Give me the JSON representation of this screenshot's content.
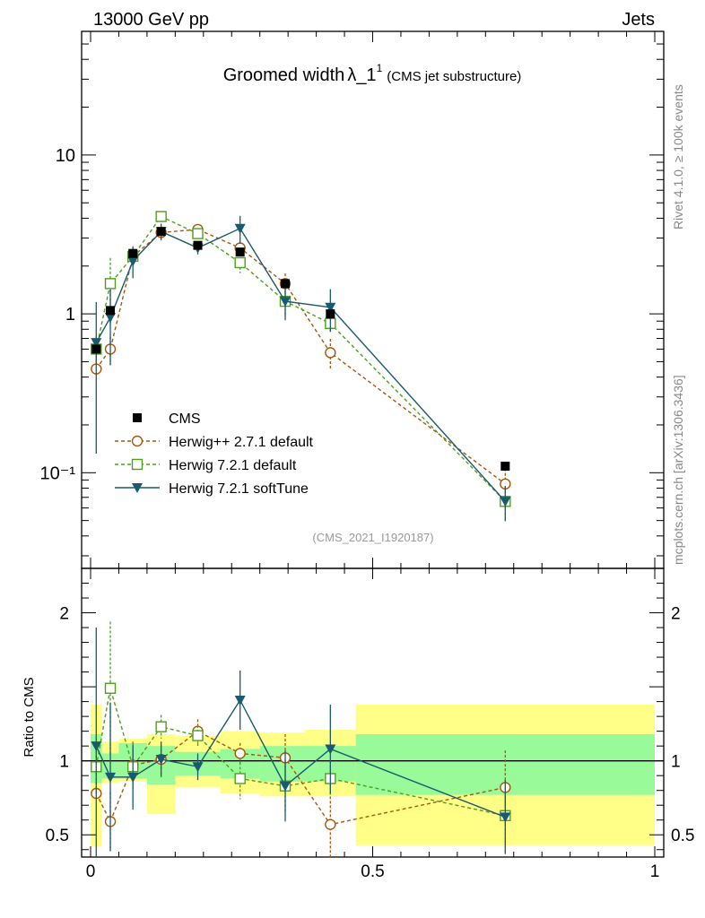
{
  "header": {
    "left": "13000 GeV pp",
    "right": "Jets"
  },
  "side": {
    "rivet": "Rivet 4.1.0, ≥ 100k events",
    "mcplots": "mcplots.cern.ch [arXiv:1306.3436]"
  },
  "chart_data": {
    "type": "scatter",
    "title_main": "Groomed width",
    "title_lambda": "λ_1",
    "title_sup": "1",
    "title_sub": "(CMS jet substructure)",
    "watermark": "(CMS_2021_I1920187)",
    "ylabel_ratio": "Ratio to CMS",
    "xlim": [
      0,
      1
    ],
    "ylim_main_log": [
      0.025,
      60
    ],
    "ylim_ratio": [
      0.35,
      2.3
    ],
    "x_ticks": [
      "0",
      "0.5",
      "1"
    ],
    "y_ticks_main": [
      "10⁻¹",
      "1",
      "10"
    ],
    "y_ticks_ratio": [
      "0.5",
      "1",
      "2"
    ],
    "bins": [
      [
        0.0,
        0.02
      ],
      [
        0.02,
        0.05
      ],
      [
        0.05,
        0.1
      ],
      [
        0.1,
        0.15
      ],
      [
        0.15,
        0.23
      ],
      [
        0.23,
        0.3
      ],
      [
        0.3,
        0.38
      ],
      [
        0.38,
        0.47
      ],
      [
        0.47,
        1.0
      ]
    ],
    "x": [
      0.01,
      0.035,
      0.075,
      0.125,
      0.19,
      0.265,
      0.345,
      0.425,
      0.735
    ],
    "data": {
      "name": "CMS",
      "values": [
        0.6,
        1.05,
        2.4,
        3.3,
        2.7,
        2.45,
        1.55,
        1.0,
        0.11
      ],
      "band_inner": [
        [
          0.85,
          1.18
        ],
        [
          0.88,
          1.05
        ],
        [
          0.88,
          1.12
        ],
        [
          0.84,
          1.1
        ],
        [
          0.9,
          1.06
        ],
        [
          0.88,
          1.08
        ],
        [
          0.86,
          1.1
        ],
        [
          0.86,
          1.1
        ],
        [
          0.77,
          1.18
        ]
      ],
      "band_outer": [
        [
          0.42,
          1.38
        ],
        [
          0.85,
          1.13
        ],
        [
          0.86,
          1.15
        ],
        [
          0.64,
          1.18
        ],
        [
          0.82,
          1.17
        ],
        [
          0.78,
          1.2
        ],
        [
          0.76,
          1.19
        ],
        [
          0.76,
          1.21
        ],
        [
          0.43,
          1.38
        ]
      ]
    },
    "series": [
      {
        "name": "Herwig++ 2.7.1 default",
        "color": "#a9560c",
        "marker": "circle",
        "dash": true,
        "values": [
          0.45,
          0.6,
          2.3,
          3.25,
          3.4,
          2.6,
          1.55,
          0.57,
          0.085
        ],
        "ratio": [
          0.78,
          0.59,
          0.97,
          1.01,
          1.2,
          1.05,
          1.02,
          0.57,
          0.82
        ],
        "ratio_err": [
          [
            0.0,
            0.2
          ],
          [
            0.2,
            0.2
          ],
          [
            0.16,
            0.16
          ],
          [
            0.1,
            0.1
          ],
          [
            0.08,
            0.08
          ],
          [
            0.07,
            0.07
          ],
          [
            0.16,
            0.16
          ],
          [
            0.22,
            0.22
          ],
          [
            0.25,
            0.25
          ]
        ]
      },
      {
        "name": "Herwig 7.2.1 default",
        "color": "#4f9f1e",
        "marker": "square",
        "dash": true,
        "values": [
          0.6,
          1.55,
          2.3,
          4.1,
          3.2,
          2.1,
          1.2,
          0.87,
          0.066
        ],
        "ratio": [
          0.96,
          1.49,
          0.96,
          1.23,
          1.17,
          0.88,
          0.83,
          0.88,
          0.63
        ],
        "ratio_err": [
          [
            0.2,
            0.2
          ],
          [
            0.45,
            0.45
          ],
          [
            0.12,
            0.12
          ],
          [
            0.08,
            0.08
          ],
          [
            0.07,
            0.07
          ],
          [
            0.14,
            0.14
          ],
          [
            0.18,
            0.18
          ],
          [
            0.12,
            0.12
          ],
          [
            0.25,
            0.25
          ]
        ]
      },
      {
        "name": "Herwig 7.2.1 softTune",
        "color": "#1a5a6e",
        "marker": "triangle",
        "dash": false,
        "values": [
          0.66,
          0.95,
          2.15,
          3.3,
          2.6,
          3.45,
          1.2,
          1.1,
          0.066
        ],
        "ratio": [
          1.1,
          0.89,
          0.89,
          1.01,
          0.96,
          1.41,
          0.83,
          1.08,
          0.62
        ],
        "ratio_err": [
          [
            0.8,
            0.8
          ],
          [
            0.5,
            0.5
          ],
          [
            0.22,
            0.22
          ],
          [
            0.12,
            0.12
          ],
          [
            0.09,
            0.09
          ],
          [
            0.2,
            0.2
          ],
          [
            0.24,
            0.24
          ],
          [
            0.3,
            0.3
          ],
          [
            0.25,
            0.25
          ]
        ]
      }
    ]
  }
}
